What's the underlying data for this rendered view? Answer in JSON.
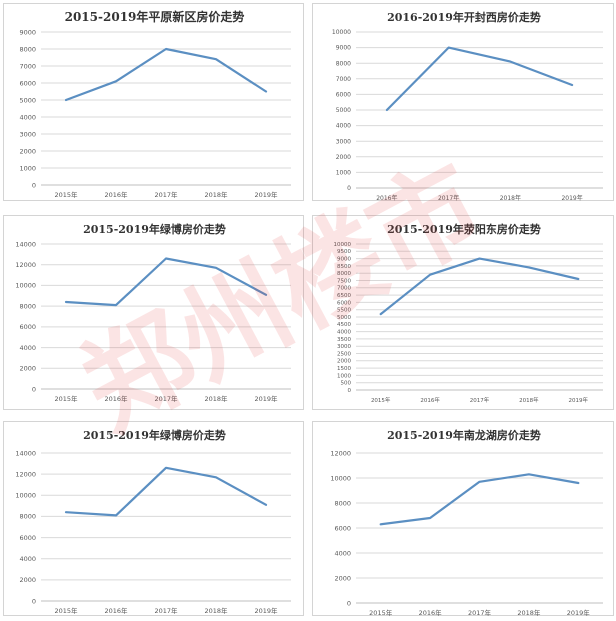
{
  "colors": {
    "line": "#5b8fc2",
    "grid": "#d9d9d9",
    "watermark": "#e23b3b"
  },
  "watermark": {
    "text": "郑州楼市"
  },
  "chart_data": [
    {
      "type": "line",
      "title": "2015-2019年平原新区房价走势",
      "categories": [
        "2015年",
        "2016年",
        "2017年",
        "2018年",
        "2019年"
      ],
      "series": [
        {
          "values": [
            5000,
            6100,
            8000,
            7400,
            5500
          ]
        }
      ],
      "ylim": [
        0,
        9000
      ],
      "ytick_step": 1000,
      "grid": true
    },
    {
      "type": "line",
      "title": "2016-2019年开封西房价走势",
      "categories": [
        "2016年",
        "2017年",
        "2018年",
        "2019年"
      ],
      "series": [
        {
          "values": [
            5000,
            9000,
            8100,
            6600
          ]
        }
      ],
      "ylim": [
        0,
        10000
      ],
      "ytick_step": 1000,
      "grid": true
    },
    {
      "type": "line",
      "title": "2015-2019年绿博房价走势",
      "categories": [
        "2015年",
        "2016年",
        "2017年",
        "2018年",
        "2019年"
      ],
      "series": [
        {
          "values": [
            8400,
            8100,
            12600,
            11700,
            9100
          ]
        }
      ],
      "ylim": [
        0,
        14000
      ],
      "ytick_step": 2000,
      "grid": true
    },
    {
      "type": "line",
      "title": "2015-2019年荥阳东房价走势",
      "categories": [
        "2015年",
        "2016年",
        "2017年",
        "2018年",
        "2019年"
      ],
      "series": [
        {
          "values": [
            5200,
            7900,
            9000,
            8400,
            7600
          ]
        }
      ],
      "ylim": [
        0,
        10000
      ],
      "ytick_step": 500,
      "grid": true
    },
    {
      "type": "line",
      "title": "2015-2019年绿博房价走势",
      "categories": [
        "2015年",
        "2016年",
        "2017年",
        "2018年",
        "2019年"
      ],
      "series": [
        {
          "values": [
            8400,
            8100,
            12600,
            11700,
            9100
          ]
        }
      ],
      "ylim": [
        0,
        14000
      ],
      "ytick_step": 2000,
      "grid": true
    },
    {
      "type": "line",
      "title": "2015-2019年南龙湖房价走势",
      "categories": [
        "2015年",
        "2016年",
        "2017年",
        "2018年",
        "2019年"
      ],
      "series": [
        {
          "values": [
            6300,
            6800,
            9700,
            10300,
            9600
          ]
        }
      ],
      "ylim": [
        0,
        12000
      ],
      "ytick_step": 2000,
      "grid": true
    }
  ]
}
